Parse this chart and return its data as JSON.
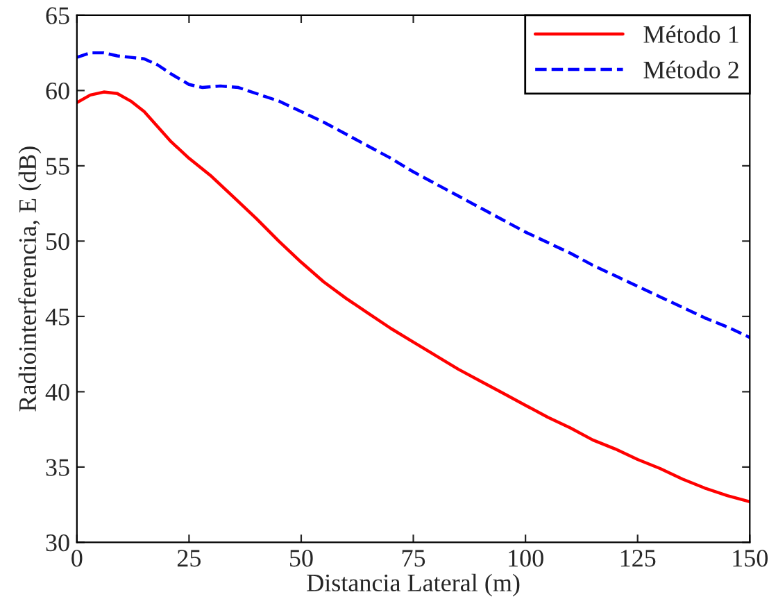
{
  "chart_data": {
    "type": "line",
    "xlabel": "Distancia Lateral (m)",
    "ylabel": "Radiointerferencia, E (dB)",
    "xlim": [
      0,
      150
    ],
    "xticks": [
      0,
      25,
      50,
      75,
      100,
      125,
      150
    ],
    "ylim": [
      30,
      65
    ],
    "yticks": [
      30,
      35,
      40,
      45,
      50,
      55,
      60,
      65
    ],
    "grid": false,
    "legend": "top right",
    "series": [
      {
        "name": "Método 1",
        "color": "#ff0000",
        "line_style": "solid",
        "x": [
          0,
          3,
          6,
          9,
          12,
          15,
          18,
          21,
          25,
          30,
          35,
          40,
          45,
          50,
          55,
          60,
          65,
          70,
          75,
          80,
          85,
          90,
          95,
          100,
          105,
          110,
          115,
          120,
          125,
          130,
          135,
          140,
          145,
          150
        ],
        "values": [
          59.2,
          59.7,
          59.9,
          59.8,
          59.3,
          58.6,
          57.6,
          56.6,
          55.5,
          54.3,
          52.9,
          51.5,
          50.0,
          48.6,
          47.3,
          46.2,
          45.2,
          44.2,
          43.3,
          42.4,
          41.5,
          40.7,
          39.9,
          39.1,
          38.3,
          37.6,
          36.8,
          36.2,
          35.5,
          34.9,
          34.2,
          33.6,
          33.1,
          32.7
        ]
      },
      {
        "name": "Método 2",
        "color": "#0000ff",
        "line_style": "dashed",
        "x": [
          0,
          3,
          6,
          9,
          12,
          15,
          18,
          21,
          25,
          28,
          32,
          36,
          40,
          45,
          50,
          55,
          60,
          65,
          70,
          75,
          80,
          85,
          90,
          95,
          100,
          105,
          110,
          115,
          120,
          125,
          130,
          135,
          140,
          145,
          150
        ],
        "values": [
          62.2,
          62.5,
          62.5,
          62.3,
          62.2,
          62.1,
          61.7,
          61.1,
          60.4,
          60.2,
          60.3,
          60.2,
          59.8,
          59.3,
          58.6,
          57.9,
          57.1,
          56.3,
          55.5,
          54.6,
          53.8,
          53.0,
          52.2,
          51.4,
          50.6,
          49.9,
          49.2,
          48.4,
          47.7,
          47.0,
          46.3,
          45.6,
          44.9,
          44.3,
          43.6
        ]
      }
    ]
  }
}
